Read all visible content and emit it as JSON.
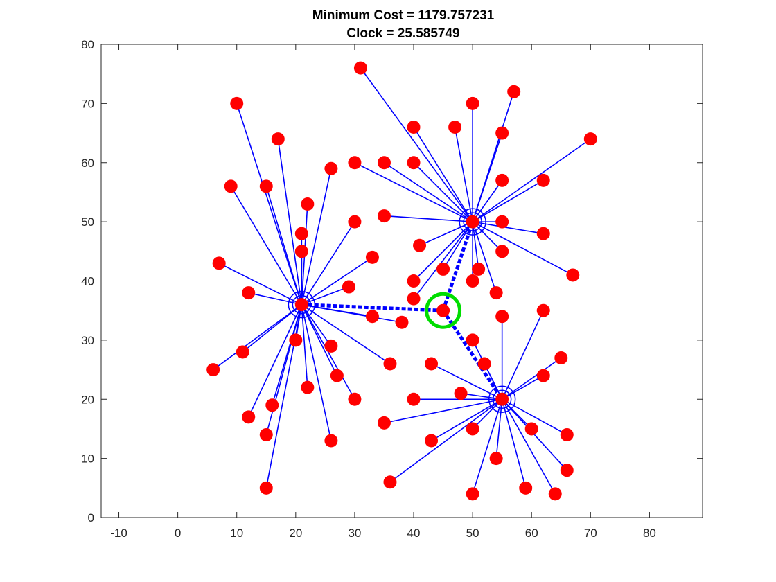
{
  "chart_data": {
    "type": "scatter",
    "title": [
      "Minimum Cost = 1179.757231",
      "Clock = 25.585749"
    ],
    "xlabel": "",
    "ylabel": "",
    "xlim": [
      -13,
      89
    ],
    "ylim": [
      0,
      80
    ],
    "xticks": [
      -10,
      0,
      10,
      20,
      30,
      40,
      50,
      60,
      70,
      80
    ],
    "yticks": [
      0,
      10,
      20,
      30,
      40,
      50,
      60,
      70,
      80
    ],
    "grid": false,
    "legend": "none",
    "hubs": [
      {
        "x": 21,
        "y": 36
      },
      {
        "x": 50,
        "y": 50
      },
      {
        "x": 55,
        "y": 20
      }
    ],
    "center": {
      "x": 45,
      "y": 35
    },
    "clusters": [
      {
        "hub": 0,
        "points": [
          [
            10,
            70
          ],
          [
            17,
            64
          ],
          [
            26,
            59
          ],
          [
            9,
            56
          ],
          [
            15,
            56
          ],
          [
            22,
            53
          ],
          [
            30,
            50
          ],
          [
            21,
            48
          ],
          [
            21,
            45
          ],
          [
            33,
            44
          ],
          [
            7,
            43
          ],
          [
            29,
            39
          ],
          [
            12,
            38
          ],
          [
            33,
            34
          ],
          [
            38,
            33
          ],
          [
            20,
            30
          ],
          [
            26,
            29
          ],
          [
            11,
            28
          ],
          [
            6,
            25
          ],
          [
            36,
            26
          ],
          [
            27,
            24
          ],
          [
            22,
            22
          ],
          [
            30,
            20
          ],
          [
            16,
            19
          ],
          [
            12,
            17
          ],
          [
            15,
            14
          ],
          [
            26,
            13
          ],
          [
            15,
            5
          ]
        ]
      },
      {
        "hub": 1,
        "points": [
          [
            31,
            76
          ],
          [
            57,
            72
          ],
          [
            50,
            70
          ],
          [
            40,
            66
          ],
          [
            47,
            66
          ],
          [
            55,
            65
          ],
          [
            70,
            64
          ],
          [
            30,
            60
          ],
          [
            35,
            60
          ],
          [
            40,
            60
          ],
          [
            55,
            57
          ],
          [
            62,
            57
          ],
          [
            35,
            51
          ],
          [
            55,
            50
          ],
          [
            62,
            48
          ],
          [
            41,
            46
          ],
          [
            55,
            45
          ],
          [
            45,
            42
          ],
          [
            51,
            42
          ],
          [
            67,
            41
          ],
          [
            50,
            40
          ],
          [
            40,
            40
          ],
          [
            54,
            38
          ],
          [
            40,
            37
          ]
        ]
      },
      {
        "hub": 2,
        "points": [
          [
            55,
            34
          ],
          [
            62,
            35
          ],
          [
            50,
            30
          ],
          [
            52,
            26
          ],
          [
            43,
            26
          ],
          [
            65,
            27
          ],
          [
            62,
            24
          ],
          [
            48,
            21
          ],
          [
            40,
            20
          ],
          [
            35,
            16
          ],
          [
            43,
            13
          ],
          [
            50,
            15
          ],
          [
            60,
            15
          ],
          [
            66,
            14
          ],
          [
            54,
            10
          ],
          [
            66,
            8
          ],
          [
            36,
            6
          ],
          [
            50,
            4
          ],
          [
            59,
            5
          ],
          [
            64,
            4
          ]
        ]
      }
    ],
    "colors": {
      "point": "#ff0000",
      "link": "#0000ff",
      "hub_ring": "#0000ff",
      "center_ring": "#00dd00",
      "axes": "#262626"
    }
  }
}
